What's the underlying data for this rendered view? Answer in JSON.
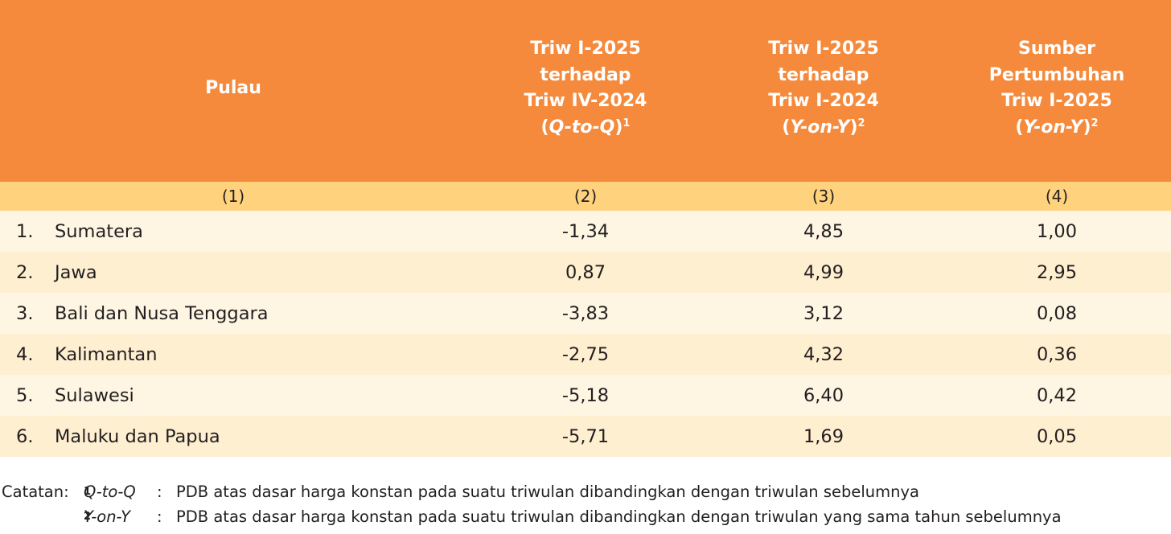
{
  "table": {
    "header": {
      "col1": "Pulau",
      "col2": {
        "lines": [
          "Triw I-2025",
          "terhadap",
          "Triw IV-2024"
        ],
        "abbr": "Q-to-Q",
        "sup": "1"
      },
      "col3": {
        "lines": [
          "Triw I-2025",
          "terhadap",
          "Triw I-2024"
        ],
        "abbr": "Y-on-Y",
        "sup": "2"
      },
      "col4": {
        "lines": [
          "Sumber",
          "Pertumbuhan",
          "Triw I-2025"
        ],
        "abbr": "Y-on-Y",
        "sup": "2"
      }
    },
    "col_numbers": [
      "(1)",
      "(2)",
      "(3)",
      "(4)"
    ],
    "rows": [
      {
        "no": "1.",
        "pulau": "Sumatera",
        "qtoq": "-1,34",
        "yony": "4,85",
        "sumber": "1,00"
      },
      {
        "no": "2.",
        "pulau": "Jawa",
        "qtoq": "0,87",
        "yony": "4,99",
        "sumber": "2,95"
      },
      {
        "no": "3.",
        "pulau": "Bali dan Nusa Tenggara",
        "qtoq": "-3,83",
        "yony": "3,12",
        "sumber": "0,08"
      },
      {
        "no": "4.",
        "pulau": "Kalimantan",
        "qtoq": "-2,75",
        "yony": "4,32",
        "sumber": "0,36"
      },
      {
        "no": "5.",
        "pulau": "Sulawesi",
        "qtoq": "-5,18",
        "yony": "6,40",
        "sumber": "0,42"
      },
      {
        "no": "6.",
        "pulau": "Maluku dan Papua",
        "qtoq": "-5,71",
        "yony": "1,69",
        "sumber": "0,05"
      }
    ]
  },
  "notes": {
    "label": "Catatan:",
    "items": [
      {
        "sup": "1",
        "term": "Q-to-Q",
        "sep": ":",
        "text": "PDB atas dasar harga konstan pada suatu triwulan dibandingkan dengan triwulan sebelumnya"
      },
      {
        "sup": "2",
        "term": "Y-on-Y",
        "sep": ":",
        "text": "PDB atas dasar harga konstan pada suatu triwulan dibandingkan dengan triwulan yang sama tahun sebelumnya"
      }
    ]
  },
  "colors": {
    "header_bg": "#f58a3c",
    "subheader_bg": "#ffd37e",
    "row_odd": "#fef5e2",
    "row_even": "#ffefd1"
  }
}
